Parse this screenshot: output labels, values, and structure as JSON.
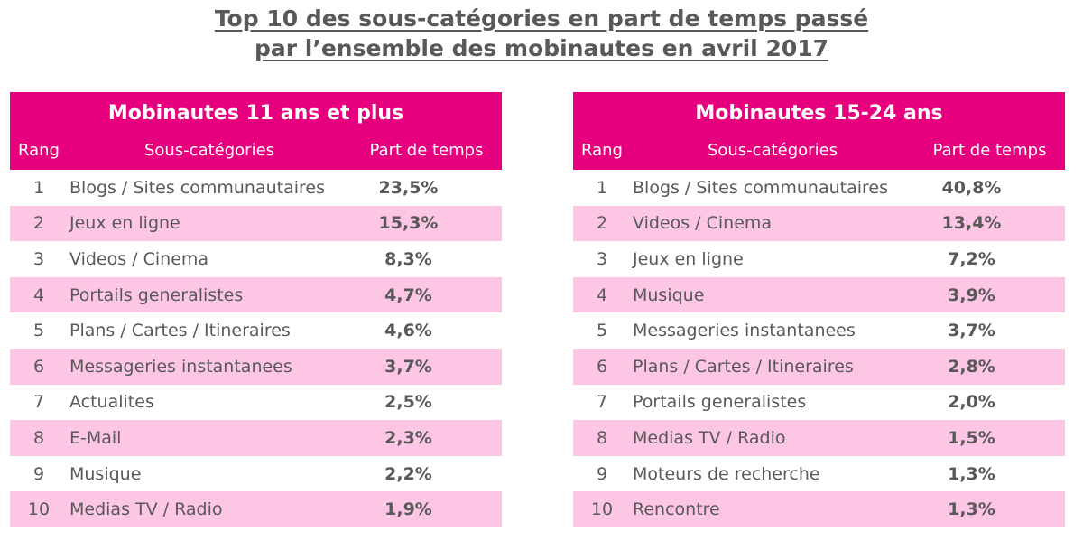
{
  "title_line1": "Top 10 des sous-catégories en part de temps passé",
  "title_line2": "par l’ensemble des mobinautes en avril 2017",
  "colors": {
    "accent": "#e6007e",
    "row_alt": "#fcc6e4",
    "text": "#595959"
  },
  "tables": [
    {
      "heading": "Mobinautes 11 ans et plus",
      "col_rank": "Rang",
      "col_cat": "Sous-catégories",
      "col_val": "Part de temps",
      "rows": [
        {
          "rank": "1",
          "cat": "Blogs / Sites communautaires",
          "val": "23,5%"
        },
        {
          "rank": "2",
          "cat": "Jeux en ligne",
          "val": "15,3%"
        },
        {
          "rank": "3",
          "cat": "Videos / Cinema",
          "val": "8,3%"
        },
        {
          "rank": "4",
          "cat": "Portails generalistes",
          "val": "4,7%"
        },
        {
          "rank": "5",
          "cat": "Plans / Cartes / Itineraires",
          "val": "4,6%"
        },
        {
          "rank": "6",
          "cat": "Messageries instantanees",
          "val": "3,7%"
        },
        {
          "rank": "7",
          "cat": "Actualites",
          "val": "2,5%"
        },
        {
          "rank": "8",
          "cat": "E-Mail",
          "val": "2,3%"
        },
        {
          "rank": "9",
          "cat": "Musique",
          "val": "2,2%"
        },
        {
          "rank": "10",
          "cat": "Medias TV / Radio",
          "val": "1,9%"
        }
      ]
    },
    {
      "heading": "Mobinautes 15-24 ans",
      "col_rank": "Rang",
      "col_cat": "Sous-catégories",
      "col_val": "Part de temps",
      "rows": [
        {
          "rank": "1",
          "cat": "Blogs / Sites communautaires",
          "val": "40,8%"
        },
        {
          "rank": "2",
          "cat": "Videos / Cinema",
          "val": "13,4%"
        },
        {
          "rank": "3",
          "cat": "Jeux en ligne",
          "val": "7,2%"
        },
        {
          "rank": "4",
          "cat": "Musique",
          "val": "3,9%"
        },
        {
          "rank": "5",
          "cat": "Messageries instantanees",
          "val": "3,7%"
        },
        {
          "rank": "6",
          "cat": "Plans / Cartes / Itineraires",
          "val": "2,8%"
        },
        {
          "rank": "7",
          "cat": "Portails generalistes",
          "val": "2,0%"
        },
        {
          "rank": "8",
          "cat": "Medias TV / Radio",
          "val": "1,5%"
        },
        {
          "rank": "9",
          "cat": "Moteurs de recherche",
          "val": "1,3%"
        },
        {
          "rank": "10",
          "cat": "Rencontre",
          "val": "1,3%"
        }
      ]
    }
  ]
}
